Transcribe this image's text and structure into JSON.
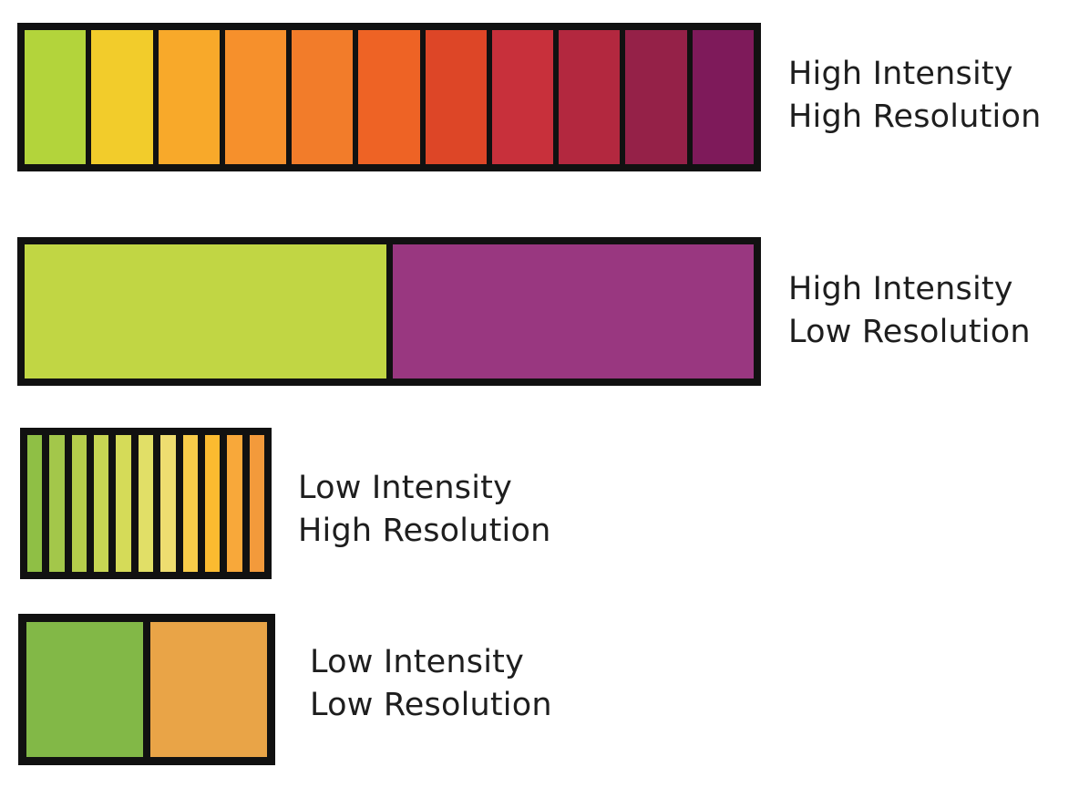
{
  "bars": [
    {
      "id": "high-intensity-high-resolution",
      "line1": "High Intensity",
      "line2": "High Resolution",
      "colors": [
        "#b3d43b",
        "#f2cc2b",
        "#f8a92a",
        "#f6902c",
        "#f27c2a",
        "#ee6325",
        "#dd4627",
        "#c8303b",
        "#b3283f",
        "#952148",
        "#7e1a5a"
      ]
    },
    {
      "id": "high-intensity-low-resolution",
      "line1": "High Intensity",
      "line2": "Low Resolution",
      "colors": [
        "#c1d644",
        "#993780"
      ]
    },
    {
      "id": "low-intensity-high-resolution",
      "line1": "Low Intensity",
      "line2": "High Resolution",
      "colors": [
        "#8fbf45",
        "#a3c74a",
        "#b5cd4b",
        "#c6d553",
        "#d5db58",
        "#e1df67",
        "#eedd70",
        "#f8cc49",
        "#fbbb30",
        "#f8a83a",
        "#f39a3b"
      ]
    },
    {
      "id": "low-intensity-low-resolution",
      "line1": "Low Intensity",
      "line2": "Low Resolution",
      "colors": [
        "#82b847",
        "#e9a447"
      ]
    }
  ]
}
